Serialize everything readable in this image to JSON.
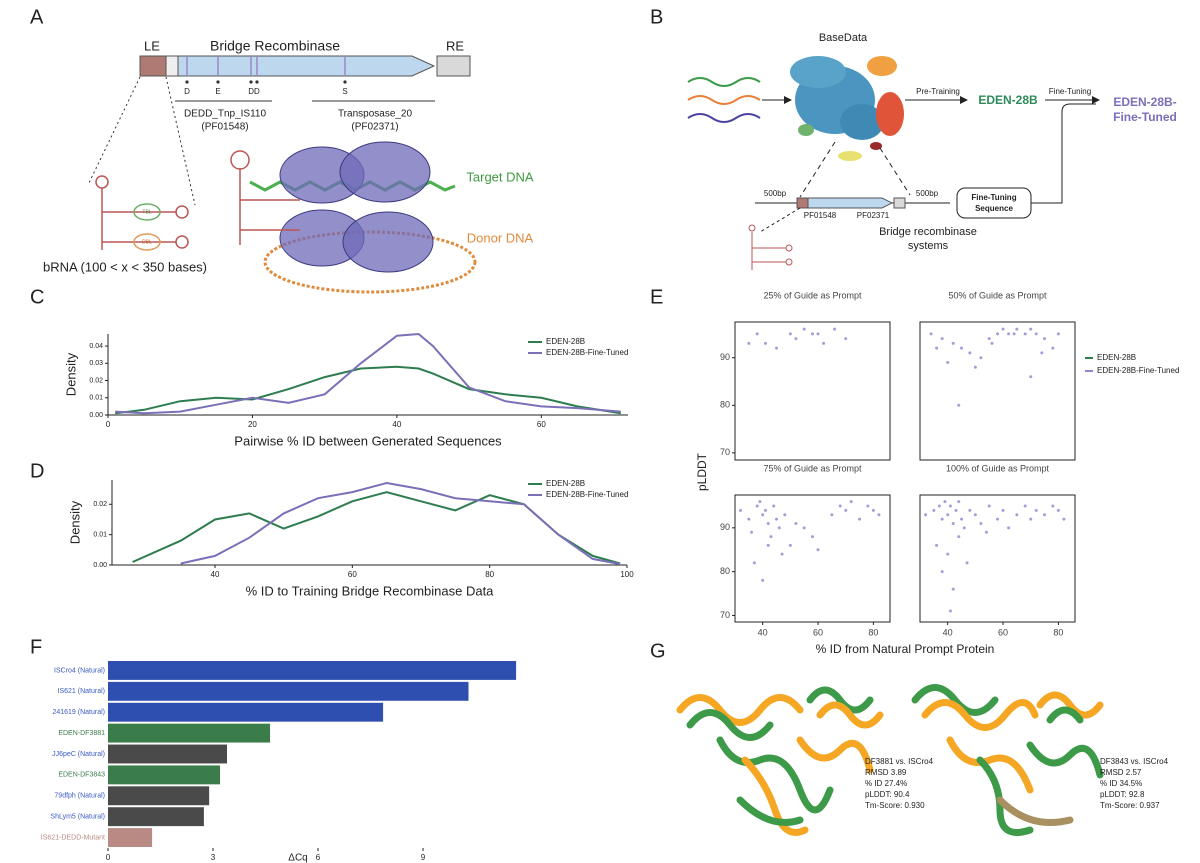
{
  "panel_labels": [
    "A",
    "B",
    "C",
    "D",
    "E",
    "F",
    "G"
  ],
  "panel_a": {
    "le": "LE",
    "gene": "Bridge Recombinase",
    "re": "RE",
    "residues": [
      "D",
      "E",
      "DD",
      "S"
    ],
    "domain1": [
      "DEDD_Tnp_IS110",
      "(PF01548)"
    ],
    "domain2": [
      "Transposase_20",
      "(PF02371)"
    ],
    "loops": [
      "TBL",
      "DBL"
    ],
    "brna": "bRNA (100 < x < 350 bases)",
    "target": "Target DNA",
    "donor": "Donor DNA"
  },
  "panel_b": {
    "basedata": "BaseData",
    "pretraining": "Pre-Training",
    "base_model": "EDEN-28B",
    "finetuning": "Fine-Tuning",
    "tuned_model": [
      "EDEN-28B-",
      "Fine-Tuned"
    ],
    "flank": [
      "500bp",
      "500bp"
    ],
    "domains": [
      "PF01548",
      "PF02371"
    ],
    "system": [
      "Bridge recombinase",
      "systems"
    ],
    "sequence_box": [
      "Fine-Tuning",
      "Sequence"
    ]
  },
  "panel_g": {
    "left": [
      "DF3881 vs. ISCro4",
      "RMSD 3.89",
      "% ID 27.4%",
      "pLDDT: 90.4",
      "Tm-Score: 0.930"
    ],
    "right": [
      "DF3843 vs. ISCro4",
      "RMSD 2.57",
      "% ID 34.5%",
      "pLDDT: 92.8",
      "Tm-Score: 0.937"
    ]
  },
  "chart_data": [
    {
      "type": "line",
      "xlabel": "Pairwise % ID between Generated Sequences",
      "ylabel": "Density",
      "legend": "upper right",
      "x": [
        1,
        5,
        10,
        15,
        20,
        25,
        30,
        35,
        40,
        43,
        45,
        50,
        55,
        60,
        65,
        71
      ],
      "series": [
        {
          "name": "EDEN-28B",
          "color": "#2e7d4f",
          "values": [
            0.001,
            0.003,
            0.008,
            0.01,
            0.009,
            0.015,
            0.022,
            0.027,
            0.028,
            0.027,
            0.024,
            0.015,
            0.012,
            0.01,
            0.005,
            0.001
          ]
        },
        {
          "name": "EDEN-28B-Fine-Tuned",
          "color": "#7b6fb8",
          "values": [
            0.002,
            0.001,
            0.002,
            0.006,
            0.01,
            0.007,
            0.012,
            0.03,
            0.046,
            0.047,
            0.04,
            0.016,
            0.008,
            0.005,
            0.004,
            0.002
          ]
        }
      ],
      "xlim": [
        0,
        72
      ],
      "xticks": [
        0,
        20,
        40,
        60
      ],
      "ylim": [
        0,
        0.047
      ],
      "yticks": [
        {
          "value": 0,
          "label": "0.00"
        },
        {
          "value": 0.01,
          "label": "0.01"
        },
        {
          "value": 0.02,
          "label": "0.02"
        },
        {
          "value": 0.03,
          "label": "0.03"
        },
        {
          "value": 0.04,
          "label": "0.04"
        }
      ]
    },
    {
      "type": "line",
      "xlabel": "% ID to Training Bridge Recombinase Data",
      "ylabel": "Density",
      "legend": "upper right",
      "x": [
        28,
        35,
        40,
        45,
        50,
        55,
        60,
        65,
        70,
        75,
        80,
        85,
        90,
        95,
        99
      ],
      "series": [
        {
          "name": "EDEN-28B",
          "color": "#2e7d4f",
          "values": [
            0.001,
            0.008,
            0.015,
            0.017,
            0.012,
            0.016,
            0.021,
            0.024,
            0.021,
            0.018,
            0.023,
            0.02,
            0.01,
            0.003,
            0.0005
          ]
        },
        {
          "name": "EDEN-28B-Fine-Tuned",
          "color": "#7b6fb8",
          "values": [
            null,
            0.0005,
            0.003,
            0.009,
            0.017,
            0.022,
            0.024,
            0.027,
            0.025,
            0.022,
            0.021,
            0.02,
            0.01,
            0.002,
            0.0003
          ]
        }
      ],
      "xlim": [
        25,
        100
      ],
      "xticks": [
        40,
        60,
        80,
        100
      ],
      "ylim": [
        0,
        0.028
      ],
      "yticks": [
        {
          "value": 0,
          "label": "0.00"
        },
        {
          "value": 0.01,
          "label": "0.01"
        },
        {
          "value": 0.02,
          "label": "0.02"
        }
      ]
    },
    {
      "type": "scatter_grid",
      "xlabel": "% ID from Natural Prompt Protein",
      "ylabel": "pLDDT",
      "legend": "right",
      "color": "#8b86cf",
      "legend_entries": [
        {
          "name": "EDEN-28B",
          "color": "#2e7d4f"
        },
        {
          "name": "EDEN-28B-Fine-Tuned",
          "color": "#8b86cf"
        }
      ],
      "xlim": [
        30,
        86
      ],
      "ylim": [
        68.5,
        97.5
      ],
      "xticks": [
        40,
        60,
        80
      ],
      "yticks": [
        70,
        80,
        90
      ],
      "panels": [
        {
          "title": "25% of Guide as Prompt",
          "x": [
            38,
            41,
            52,
            55,
            58,
            62,
            66,
            70,
            45,
            60,
            35,
            50
          ],
          "y": [
            95,
            93,
            94,
            96,
            95,
            93,
            96,
            94,
            92,
            95,
            93,
            95
          ]
        },
        {
          "title": "50% of Guide as Prompt",
          "x": [
            34,
            38,
            42,
            45,
            48,
            52,
            55,
            58,
            60,
            62,
            65,
            68,
            70,
            72,
            75,
            78,
            80,
            40,
            50,
            56,
            64,
            70,
            74,
            44,
            36
          ],
          "y": [
            95,
            94,
            93,
            92,
            91,
            90,
            94,
            95,
            96,
            95,
            96,
            95,
            96,
            95,
            94,
            92,
            95,
            89,
            88,
            93,
            95,
            86,
            91,
            80,
            92
          ]
        },
        {
          "title": "75% of Guide as Prompt",
          "x": [
            32,
            35,
            38,
            40,
            42,
            44,
            46,
            48,
            36,
            39,
            41,
            43,
            45,
            50,
            55,
            60,
            65,
            68,
            70,
            72,
            75,
            78,
            80,
            82,
            37,
            40,
            42,
            47,
            52,
            58
          ],
          "y": [
            94,
            92,
            95,
            93,
            91,
            95,
            90,
            93,
            89,
            96,
            94,
            88,
            92,
            86,
            90,
            85,
            93,
            95,
            94,
            96,
            92,
            95,
            94,
            93,
            82,
            78,
            86,
            84,
            91,
            88
          ]
        },
        {
          "title": "100% of Guide as Prompt",
          "x": [
            32,
            35,
            37,
            38,
            39,
            40,
            41,
            42,
            43,
            44,
            45,
            46,
            48,
            50,
            52,
            55,
            58,
            60,
            62,
            65,
            68,
            70,
            72,
            75,
            78,
            80,
            82,
            36,
            40,
            44,
            38,
            42,
            47,
            54,
            41
          ],
          "y": [
            93,
            94,
            95,
            92,
            96,
            93,
            95,
            91,
            94,
            96,
            92,
            90,
            94,
            93,
            91,
            95,
            92,
            94,
            90,
            93,
            95,
            92,
            94,
            93,
            95,
            94,
            92,
            86,
            84,
            88,
            80,
            76,
            82,
            89,
            71
          ]
        }
      ]
    },
    {
      "type": "bar",
      "orientation": "horizontal",
      "xlabel": "ΔCq",
      "categories": [
        "ISCro4 (Natural)",
        "IS621 (Natural)",
        "241619 (Natural)",
        "EDEN-DF3881",
        "JJ6peC (Natural)",
        "EDEN-DF3843",
        "79dfph (Natural)",
        "ShLym5 (Natural)",
        "IS621-DEDD-Mutant"
      ],
      "values": [
        11.66,
        10.3,
        7.86,
        4.63,
        3.4,
        3.2,
        2.89,
        2.74,
        1.26
      ],
      "colors": [
        "#2f4fb0",
        "#2f4fb0",
        "#2f4fb0",
        "#3a7d4a",
        "#4a4a4a",
        "#3a7d4a",
        "#4a4a4a",
        "#4a4a4a",
        "#b98a84"
      ],
      "label_colors": [
        "#3b5bc4",
        "#3b5bc4",
        "#3b5bc4",
        "#3a7d4a",
        "#3b5bc4",
        "#3a7d4a",
        "#3b5bc4",
        "#3b5bc4",
        "#b98a84"
      ],
      "xlim": [
        0,
        12
      ],
      "xticks": [
        0,
        3,
        6,
        9
      ]
    }
  ]
}
